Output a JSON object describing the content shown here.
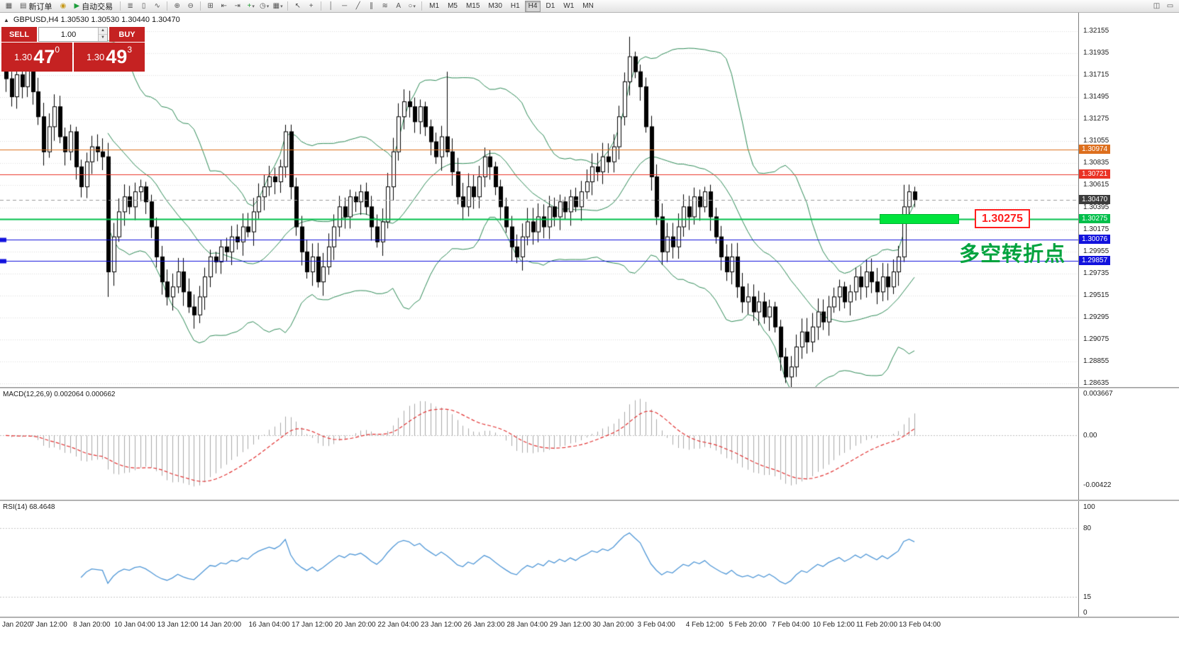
{
  "toolbar": {
    "items": [
      {
        "icon": "▦",
        "name": "chart-window-icon"
      },
      {
        "label": "新订单",
        "icon": "▤",
        "name": "new-order-button"
      },
      {
        "icon": "◉",
        "name": "alert-sound-icon",
        "iconColor": "#c79a1d"
      },
      {
        "label": "自动交易",
        "icon": "▶",
        "name": "autotrading-button",
        "iconColor": "#1e9e3c"
      },
      {
        "sep": true
      },
      {
        "icon": "≣",
        "name": "ohlc-bars-icon"
      },
      {
        "icon": "▯",
        "name": "candlestick-chart-icon"
      },
      {
        "icon": "∿",
        "name": "line-chart-icon"
      },
      {
        "sep": true
      },
      {
        "icon": "⊕",
        "name": "zoom-in-icon"
      },
      {
        "icon": "⊖",
        "name": "zoom-out-icon"
      },
      {
        "sep": true
      },
      {
        "icon": "⊞",
        "name": "tile-windows-icon"
      },
      {
        "icon": "⇤",
        "name": "auto-scroll-icon"
      },
      {
        "icon": "⇥",
        "name": "chart-shift-icon"
      },
      {
        "icon": "+",
        "name": "add-indicator-icon",
        "iconColor": "#1a9c2e",
        "dd": true
      },
      {
        "icon": "◷",
        "name": "period-selector-icon",
        "dd": true
      },
      {
        "icon": "▦",
        "name": "template-icon",
        "dd": true
      },
      {
        "sep": true
      },
      {
        "icon": "↖",
        "name": "cursor-icon"
      },
      {
        "icon": "+",
        "name": "crosshair-icon"
      },
      {
        "sep": true
      },
      {
        "icon": "│",
        "name": "vertical-line-icon"
      },
      {
        "icon": "─",
        "name": "horizontal-line-icon"
      },
      {
        "icon": "╱",
        "name": "trendline-icon"
      },
      {
        "icon": "∥",
        "name": "channel-icon"
      },
      {
        "icon": "≋",
        "name": "fibonacci-icon"
      },
      {
        "icon": "A",
        "name": "text-label-icon"
      },
      {
        "icon": "○",
        "name": "shapes-icon",
        "dd": true
      },
      {
        "sep": true
      },
      {
        "timeframes": true
      },
      {
        "spacer": true
      },
      {
        "icon": "◫",
        "name": "data-window-icon"
      },
      {
        "icon": "▭",
        "name": "window-list-icon"
      }
    ],
    "timeframes": [
      {
        "label": "M1"
      },
      {
        "label": "M5"
      },
      {
        "label": "M15"
      },
      {
        "label": "M30"
      },
      {
        "label": "H1"
      },
      {
        "label": "H4",
        "active": true
      },
      {
        "label": "D1"
      },
      {
        "label": "W1"
      },
      {
        "label": "MN"
      }
    ]
  },
  "chart": {
    "symbol_ohlc": "GBPUSD,H4  1.30530 1.30530 1.30440 1.30470"
  },
  "trade_panel": {
    "sell": "SELL",
    "buy": "BUY",
    "volume": "1.00",
    "sell_price": {
      "base": "1.30",
      "big": "47",
      "sup": "0"
    },
    "buy_price": {
      "base": "1.30",
      "big": "49",
      "sup": "3"
    }
  },
  "price_axis": {
    "ticks": [
      "1.32155",
      "1.31935",
      "1.31715",
      "1.31495",
      "1.31275",
      "1.31055",
      "1.30835",
      "1.30615",
      "1.30395",
      "1.30175",
      "1.29955",
      "1.29735",
      "1.29515",
      "1.29295",
      "1.29075",
      "1.28855",
      "1.28635"
    ]
  },
  "hlines": [
    {
      "price": 1.30974,
      "label": "1.30974",
      "color": "#dd6f1e",
      "width": 1
    },
    {
      "price": 1.30721,
      "label": "1.30721",
      "color": "#ea3326",
      "width": 1
    },
    {
      "price": 1.30275,
      "label": "1.30275",
      "color": "#00bf4a",
      "width": 2
    },
    {
      "price": 1.30076,
      "label": "1.30076",
      "color": "#1212dd",
      "width": 1,
      "anchor": true
    },
    {
      "price": 1.29857,
      "label": "1.29857",
      "color": "#1212dd",
      "width": 1,
      "anchor": true
    }
  ],
  "current_price": {
    "label": "1.30470",
    "color": "#3c3c3c",
    "price": 1.3047
  },
  "annotations": {
    "price_label": "1.30275",
    "turning_point_text": "多空转折点",
    "highlight_color": "#00e43c"
  },
  "panels": {
    "macd": {
      "header": "MACD(12,26,9) 0.002064 0.000662",
      "axis_labels": [
        "0.003667",
        "0.00",
        "-0.00422"
      ]
    },
    "rsi": {
      "header": "RSI(14) 68.4648",
      "axis_labels": [
        "100",
        "80",
        "15",
        "0"
      ],
      "levels": [
        80,
        15
      ]
    }
  },
  "time_axis": [
    {
      "label": "Jan 2020",
      "i": 0
    },
    {
      "label": "7 Jan 12:00",
      "i": 8
    },
    {
      "label": "8 Jan 20:00",
      "i": 16
    },
    {
      "label": "10 Jan 04:00",
      "i": 24
    },
    {
      "label": "13 Jan 12:00",
      "i": 32
    },
    {
      "label": "14 Jan 20:00",
      "i": 40
    },
    {
      "label": "16 Jan 04:00",
      "i": 49
    },
    {
      "label": "17 Jan 12:00",
      "i": 57
    },
    {
      "label": "20 Jan 20:00",
      "i": 65
    },
    {
      "label": "22 Jan 04:00",
      "i": 73
    },
    {
      "label": "23 Jan 12:00",
      "i": 81
    },
    {
      "label": "26 Jan 23:00",
      "i": 89
    },
    {
      "label": "28 Jan 04:00",
      "i": 97
    },
    {
      "label": "29 Jan 12:00",
      "i": 105
    },
    {
      "label": "30 Jan 20:00",
      "i": 113
    },
    {
      "label": "3 Feb 04:00",
      "i": 121
    },
    {
      "label": "4 Feb 12:00",
      "i": 130
    },
    {
      "label": "5 Feb 20:00",
      "i": 138
    },
    {
      "label": "7 Feb 04:00",
      "i": 146
    },
    {
      "label": "10 Feb 12:00",
      "i": 154
    },
    {
      "label": "11 Feb 20:00",
      "i": 162
    },
    {
      "label": "13 Feb 04:00",
      "i": 170
    }
  ],
  "chart_data": {
    "type": "candlestick",
    "symbol": "GBPUSD",
    "timeframe": "H4",
    "current_bar": {
      "open": 1.3053,
      "high": 1.3053,
      "low": 1.3044,
      "close": 1.3047
    },
    "price_range": [
      1.28635,
      1.32155
    ],
    "closes": [
      1.3168,
      1.315,
      1.3172,
      1.316,
      1.3178,
      1.3155,
      1.313,
      1.3095,
      1.312,
      1.314,
      1.311,
      1.3095,
      1.3115,
      1.308,
      1.306,
      1.3085,
      1.31,
      1.3095,
      1.309,
      1.2975,
      1.301,
      1.3035,
      1.305,
      1.304,
      1.3055,
      1.306,
      1.3045,
      1.302,
      1.299,
      1.2965,
      1.295,
      1.296,
      1.2975,
      1.2955,
      1.294,
      1.2932,
      1.295,
      1.297,
      1.299,
      1.2985,
      1.3,
      1.2995,
      1.301,
      1.3005,
      1.302,
      1.3015,
      1.3035,
      1.305,
      1.306,
      1.307,
      1.3065,
      1.308,
      1.3115,
      1.306,
      1.302,
      1.2995,
      1.2975,
      1.299,
      1.2965,
      1.298,
      1.3,
      1.302,
      1.304,
      1.303,
      1.305,
      1.3045,
      1.3055,
      1.304,
      1.302,
      1.3005,
      1.3025,
      1.306,
      1.3095,
      1.313,
      1.3145,
      1.314,
      1.3125,
      1.314,
      1.312,
      1.3105,
      1.309,
      1.311,
      1.3095,
      1.3075,
      1.305,
      1.304,
      1.306,
      1.305,
      1.307,
      1.309,
      1.308,
      1.306,
      1.304,
      1.302,
      1.3,
      1.299,
      1.301,
      1.3025,
      1.3015,
      1.303,
      1.302,
      1.304,
      1.303,
      1.3045,
      1.3035,
      1.305,
      1.304,
      1.3055,
      1.3065,
      1.308,
      1.3075,
      1.309,
      1.3085,
      1.31,
      1.313,
      1.3165,
      1.319,
      1.3175,
      1.316,
      1.312,
      1.307,
      1.303,
      1.2995,
      1.301,
      1.3,
      1.302,
      1.304,
      1.303,
      1.305,
      1.304,
      1.3055,
      1.303,
      1.301,
      1.299,
      1.2975,
      1.299,
      1.296,
      1.2945,
      1.295,
      1.2935,
      1.2945,
      1.293,
      1.294,
      1.292,
      1.289,
      1.287,
      1.288,
      1.29,
      1.2915,
      1.2905,
      1.292,
      1.2935,
      1.2925,
      1.294,
      1.295,
      1.296,
      1.2945,
      1.2955,
      1.297,
      1.296,
      1.2975,
      1.2965,
      1.2955,
      1.297,
      1.296,
      1.2975,
      1.299,
      1.304,
      1.3055,
      1.3047
    ],
    "wick_overrides": {
      "4": {
        "high": 1.3186
      },
      "19": {
        "low": 1.295
      },
      "52": {
        "high": 1.3122
      },
      "82": {
        "high": 1.3175
      },
      "116": {
        "high": 1.321
      },
      "145": {
        "low": 1.2864
      },
      "167": {
        "high": 1.3062
      }
    },
    "indicators": [
      {
        "name": "Bollinger Bands",
        "period": 20,
        "deviation": 2,
        "color": "#2e8b57"
      },
      {
        "name": "MACD",
        "fast": 12,
        "slow": 26,
        "signal": 9,
        "values": [
          0.002064,
          0.000662
        ]
      },
      {
        "name": "RSI",
        "period": 14,
        "value": 68.4648
      }
    ]
  }
}
